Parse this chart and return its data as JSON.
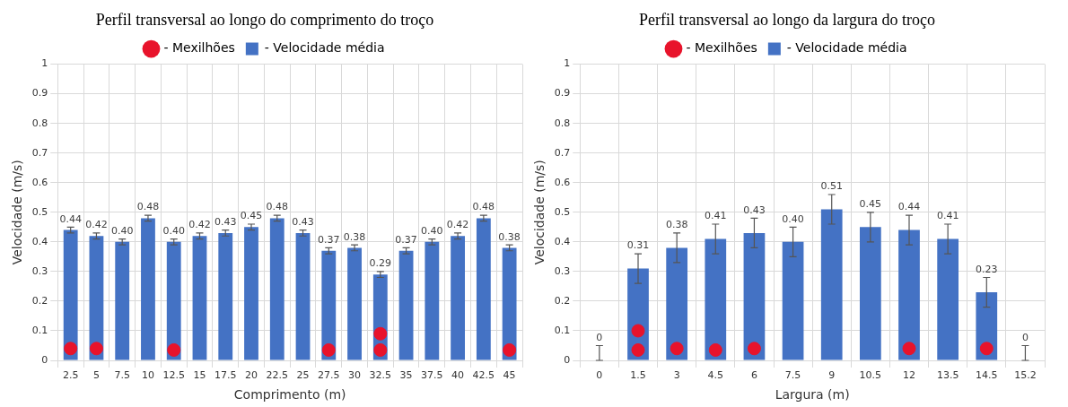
{
  "chart_data": [
    {
      "type": "bar",
      "title": "Perfil transversal ao longo do comprimento do troço",
      "xlabel": "Comprimento (m)",
      "ylabel": "Velocidade (m/s)",
      "categories": [
        "2.5",
        "5",
        "7.5",
        "10",
        "12.5",
        "15",
        "17.5",
        "20",
        "22.5",
        "25",
        "27.5",
        "30",
        "32.5",
        "35",
        "37.5",
        "40",
        "42.5",
        "45"
      ],
      "ylim": [
        0,
        1
      ],
      "yticks": [
        0,
        0.1,
        0.2,
        0.3,
        0.4,
        0.5,
        0.6,
        0.7,
        0.8,
        0.9,
        1
      ],
      "grid": true,
      "legend": "top",
      "series": [
        {
          "type": "scatter",
          "name": "- Mexilhões",
          "color": "#e8132b",
          "marker": "circle",
          "x": [
            "2.5",
            "5",
            "12.5",
            "27.5",
            "32.5",
            "32.5",
            "45"
          ],
          "values": [
            0.04,
            0.04,
            0.035,
            0.035,
            0.035,
            0.09,
            0.035
          ]
        },
        {
          "name": "- Velocidade média",
          "color": "#4472c4",
          "values": [
            0.44,
            0.42,
            0.4,
            0.48,
            0.4,
            0.42,
            0.43,
            0.45,
            0.48,
            0.43,
            0.37,
            0.38,
            0.29,
            0.37,
            0.4,
            0.42,
            0.48,
            0.38
          ],
          "errors": [
            0.01,
            0.01,
            0.01,
            0.01,
            0.01,
            0.01,
            0.01,
            0.01,
            0.01,
            0.01,
            0.01,
            0.01,
            0.01,
            0.01,
            0.01,
            0.01,
            0.01,
            0.01
          ],
          "value_labels": [
            "0.44",
            "0.42",
            "0.40",
            "0.48",
            "0.40",
            "0.42",
            "0.43",
            "0.45",
            "0.48",
            "0.43",
            "0.37",
            "0.38",
            "0.29",
            "0.37",
            "0.40",
            "0.42",
            "0.48",
            "0.38"
          ]
        }
      ]
    },
    {
      "type": "bar",
      "title": "Perfil transversal ao longo da largura do troço",
      "xlabel": "Largura (m)",
      "ylabel": "Velocidade (m/s)",
      "categories": [
        "0",
        "1.5",
        "3",
        "4.5",
        "6",
        "7.5",
        "9",
        "10.5",
        "12",
        "13.5",
        "14.5",
        "15.2"
      ],
      "ylim": [
        0,
        1
      ],
      "yticks": [
        0,
        0.1,
        0.2,
        0.3,
        0.4,
        0.5,
        0.6,
        0.7,
        0.8,
        0.9,
        1
      ],
      "grid": true,
      "legend": "top",
      "series": [
        {
          "type": "scatter",
          "name": "- Mexilhões",
          "color": "#e8132b",
          "marker": "circle",
          "x": [
            "1.5",
            "1.5",
            "3",
            "4.5",
            "6",
            "12",
            "14.5"
          ],
          "values": [
            0.035,
            0.1,
            0.04,
            0.035,
            0.04,
            0.04,
            0.04
          ]
        },
        {
          "name": "- Velocidade média",
          "color": "#4472c4",
          "values": [
            0,
            0.31,
            0.38,
            0.41,
            0.43,
            0.4,
            0.51,
            0.45,
            0.44,
            0.41,
            0.23,
            0
          ],
          "errors": [
            [
              0,
              0.05
            ],
            0.05,
            0.05,
            0.05,
            0.05,
            0.05,
            0.05,
            0.05,
            0.05,
            0.05,
            0.05,
            [
              0,
              0.05
            ]
          ],
          "value_labels": [
            "0",
            "0.31",
            "0.38",
            "0.41",
            "0.43",
            "0.40",
            "0.51",
            "0.45",
            "0.44",
            "0.41",
            "0.23",
            "0"
          ]
        }
      ]
    }
  ]
}
